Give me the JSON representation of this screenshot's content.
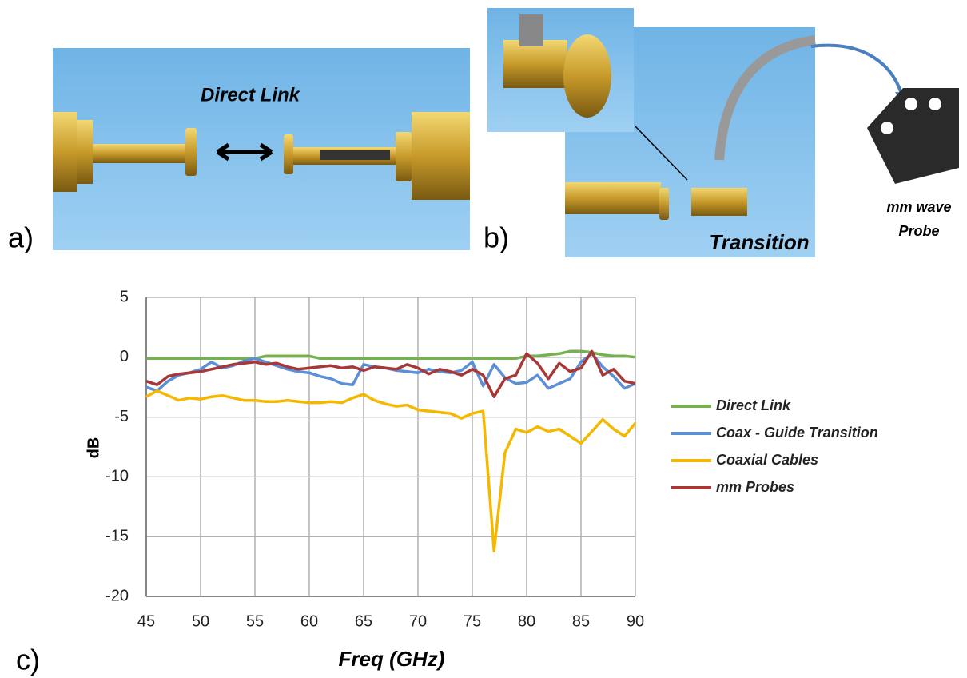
{
  "panels": {
    "a": {
      "tag": "a)",
      "label": "Direct Link"
    },
    "b": {
      "tag": "b)",
      "label": "Transition",
      "probe_label": [
        "mm wave",
        "Probe"
      ]
    },
    "c": {
      "tag": "c)"
    }
  },
  "chart_data": {
    "type": "line",
    "x_label": "Freq (GHz)",
    "y_label": "dB",
    "x": [
      45,
      46,
      47,
      48,
      49,
      50,
      51,
      52,
      53,
      54,
      55,
      56,
      57,
      58,
      59,
      60,
      61,
      62,
      63,
      64,
      65,
      66,
      67,
      68,
      69,
      70,
      71,
      72,
      73,
      74,
      75,
      76,
      77,
      78,
      79,
      80,
      81,
      82,
      83,
      84,
      85,
      86,
      87,
      88,
      89,
      90
    ],
    "series": [
      {
        "name": "Direct Link",
        "color": "#77b050",
        "values": [
          -0.1,
          -0.1,
          -0.1,
          -0.1,
          -0.1,
          -0.1,
          -0.1,
          -0.1,
          -0.1,
          -0.1,
          -0.1,
          0.1,
          0.1,
          0.1,
          0.1,
          0.1,
          -0.1,
          -0.1,
          -0.1,
          -0.1,
          -0.1,
          -0.1,
          -0.1,
          -0.1,
          -0.1,
          -0.1,
          -0.1,
          -0.1,
          -0.1,
          -0.1,
          -0.1,
          -0.1,
          -0.1,
          -0.1,
          -0.1,
          0.1,
          0.1,
          0.2,
          0.3,
          0.5,
          0.5,
          0.4,
          0.2,
          0.1,
          0.1,
          0
        ]
      },
      {
        "name": "Coax - Guide Transition",
        "color": "#5b8fd6",
        "values": [
          -2.5,
          -2.8,
          -2,
          -1.5,
          -1.3,
          -1,
          -0.4,
          -0.9,
          -0.7,
          -0.3,
          -0.1,
          -0.4,
          -0.7,
          -1,
          -1.2,
          -1.3,
          -1.6,
          -1.8,
          -2.2,
          -2.3,
          -0.6,
          -0.8,
          -0.9,
          -1.1,
          -1.2,
          -1.3,
          -1,
          -1.2,
          -1.3,
          -1.1,
          -0.4,
          -2.4,
          -0.6,
          -1.7,
          -2.2,
          -2.1,
          -1.5,
          -2.6,
          -2.2,
          -1.8,
          -0.4,
          0.3,
          -0.8,
          -1.6,
          -2.6,
          -2.2
        ]
      },
      {
        "name": "Coaxial Cables",
        "color": "#f5b800",
        "values": [
          -3.3,
          -2.8,
          -3.2,
          -3.6,
          -3.4,
          -3.5,
          -3.3,
          -3.2,
          -3.4,
          -3.6,
          -3.6,
          -3.7,
          -3.7,
          -3.6,
          -3.7,
          -3.8,
          -3.8,
          -3.7,
          -3.8,
          -3.4,
          -3.1,
          -3.6,
          -3.9,
          -4.1,
          -4,
          -4.4,
          -4.5,
          -4.6,
          -4.7,
          -5.1,
          -4.7,
          -4.5,
          -16.2,
          -8,
          -6,
          -6.3,
          -5.8,
          -6.2,
          -6,
          -6.6,
          -7.2,
          -6.2,
          -5.2,
          -6,
          -6.6,
          -5.5
        ]
      },
      {
        "name": "mm Probes",
        "color": "#a83838",
        "values": [
          -2,
          -2.3,
          -1.6,
          -1.4,
          -1.3,
          -1.2,
          -1,
          -0.8,
          -0.6,
          -0.5,
          -0.4,
          -0.6,
          -0.5,
          -0.8,
          -1,
          -0.9,
          -0.8,
          -0.7,
          -0.9,
          -0.8,
          -1.1,
          -0.8,
          -0.9,
          -1,
          -0.6,
          -0.9,
          -1.4,
          -1,
          -1.2,
          -1.5,
          -1,
          -1.5,
          -3.3,
          -1.8,
          -1.5,
          0.3,
          -0.5,
          -1.8,
          -0.5,
          -1.2,
          -0.9,
          0.5,
          -1.5,
          -1,
          -2,
          -2.2
        ]
      }
    ],
    "xlim": [
      45,
      90
    ],
    "ylim": [
      -20,
      5
    ],
    "xticks": [
      45,
      50,
      55,
      60,
      65,
      70,
      75,
      80,
      85,
      90
    ],
    "yticks": [
      5,
      0,
      -5,
      -10,
      -15,
      -20
    ],
    "grid": true,
    "legend": "right"
  }
}
